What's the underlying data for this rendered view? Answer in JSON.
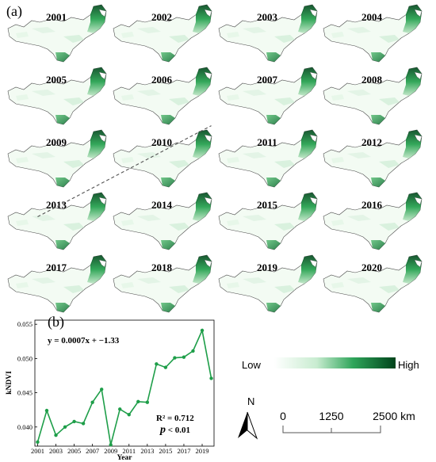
{
  "panel_labels": {
    "a": "(a)",
    "b": "(b)"
  },
  "maps": {
    "years": [
      "2001",
      "2002",
      "2003",
      "2004",
      "2005",
      "2006",
      "2007",
      "2008",
      "2009",
      "2010",
      "2011",
      "2012",
      "2013",
      "2014",
      "2015",
      "2016",
      "2017",
      "2018",
      "2019",
      "2020"
    ],
    "colors": {
      "low": "#f3fbf3",
      "mid": "#74c98a",
      "high": "#00441b",
      "outline": "#4a4a4a"
    }
  },
  "legend": {
    "low_label": "Low",
    "high_label": "High"
  },
  "north_arrow": {
    "label": "N"
  },
  "scale_bar": {
    "labels": [
      "0",
      "1250",
      "2500 km"
    ]
  },
  "chart_data": {
    "type": "line",
    "x": [
      2001,
      2002,
      2003,
      2004,
      2005,
      2006,
      2007,
      2008,
      2009,
      2010,
      2011,
      2012,
      2013,
      2014,
      2015,
      2016,
      2017,
      2018,
      2019,
      2020
    ],
    "series": [
      {
        "values": [
          0.0378,
          0.0424,
          0.0388,
          0.04,
          0.0408,
          0.0405,
          0.0436,
          0.0455,
          0.0374,
          0.0426,
          0.0418,
          0.0437,
          0.0436,
          0.0492,
          0.0487,
          0.0501,
          0.0502,
          0.0511,
          0.0541,
          0.0471
        ]
      }
    ],
    "trend": {
      "slope": 0.0007,
      "intercept": -1.33
    },
    "equation": "y = 0.0007x + −1.33",
    "r_squared": "R² = 0.712",
    "p_symbol": "p",
    "p_text": " < 0.01",
    "xlabel": "Year",
    "ylabel": "kNDVI",
    "xticks": [
      "2001",
      "2003",
      "2005",
      "2007",
      "2009",
      "2011",
      "2013",
      "2015",
      "2017",
      "2019"
    ],
    "yticks": [
      "0.040",
      "0.045",
      "0.050",
      "0.055"
    ],
    "ylim": [
      0.0372,
      0.0556
    ],
    "xlim": [
      2000.7,
      2020.3
    ],
    "colors": {
      "line": "#1e9e49",
      "marker": "#1e9e49",
      "trend": "#555555"
    }
  }
}
